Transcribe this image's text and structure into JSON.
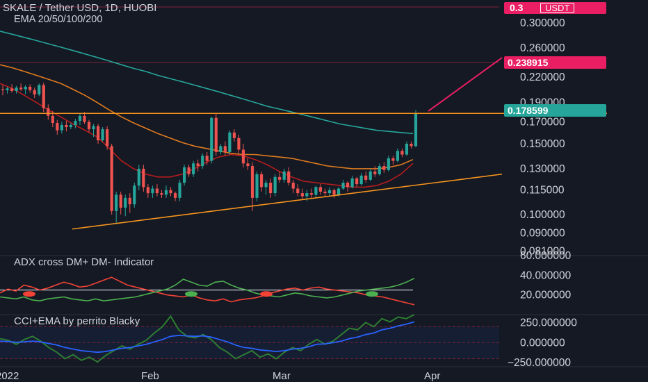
{
  "header": {
    "symbol_title": "SKALE / Tether USD, 1D, HUOBI",
    "ema_label": "EMA 20/50/100/200"
  },
  "price_badge": {
    "value": "0.3",
    "currency": "USDT"
  },
  "colors": {
    "background": "#151924",
    "bull": "#26a69a",
    "bear": "#ef5350",
    "trend_line": "#f7941d",
    "arrow": "#e91e63",
    "ema20": "#b71c1c",
    "ema50": "#e07b1f",
    "ema200": "#26a69a",
    "dm_plus": "#4caf50",
    "dm_minus": "#f44336",
    "cci": "#2e7d32",
    "cci_ema": "#2962ff"
  },
  "chart_data": [
    {
      "type": "candlestick",
      "title": "SKALE / Tether USD, 1D, HUOBI",
      "overlay": "EMA 20/50/100/200",
      "y_scale": "log",
      "ylim": [
        0.079,
        0.342
      ],
      "y_ticks": [
        "0.300000",
        "0.260000",
        "0.220000",
        "0.190000",
        "0.170000",
        "0.150000",
        "0.130000",
        "0.115000",
        "0.100000",
        "0.090000",
        "0.081000"
      ],
      "x_ticks": [
        "2022",
        "Feb",
        "Mar",
        "Apr"
      ],
      "price_labels": [
        {
          "value": "0.238915",
          "style": "target"
        },
        {
          "value": "0.178599",
          "style": "last"
        }
      ],
      "candles": [
        [
          0.205,
          0.21,
          0.198,
          0.204
        ],
        [
          0.204,
          0.208,
          0.2,
          0.206
        ],
        [
          0.206,
          0.211,
          0.201,
          0.203
        ],
        [
          0.203,
          0.209,
          0.2,
          0.207
        ],
        [
          0.207,
          0.212,
          0.203,
          0.205
        ],
        [
          0.205,
          0.21,
          0.199,
          0.208
        ],
        [
          0.208,
          0.211,
          0.201,
          0.204
        ],
        [
          0.204,
          0.207,
          0.195,
          0.199
        ],
        [
          0.199,
          0.212,
          0.197,
          0.21
        ],
        [
          0.21,
          0.213,
          0.18,
          0.184
        ],
        [
          0.184,
          0.188,
          0.172,
          0.176
        ],
        [
          0.176,
          0.181,
          0.165,
          0.169
        ],
        [
          0.169,
          0.172,
          0.158,
          0.162
        ],
        [
          0.162,
          0.17,
          0.159,
          0.167
        ],
        [
          0.167,
          0.171,
          0.161,
          0.165
        ],
        [
          0.165,
          0.169,
          0.163,
          0.167
        ],
        [
          0.167,
          0.173,
          0.164,
          0.171
        ],
        [
          0.171,
          0.179,
          0.167,
          0.176
        ],
        [
          0.176,
          0.18,
          0.168,
          0.17
        ],
        [
          0.17,
          0.172,
          0.16,
          0.163
        ],
        [
          0.163,
          0.168,
          0.156,
          0.166
        ],
        [
          0.166,
          0.168,
          0.15,
          0.153
        ],
        [
          0.153,
          0.165,
          0.152,
          0.163
        ],
        [
          0.163,
          0.166,
          0.145,
          0.148
        ],
        [
          0.148,
          0.15,
          0.1,
          0.102
        ],
        [
          0.102,
          0.114,
          0.095,
          0.112
        ],
        [
          0.112,
          0.114,
          0.1,
          0.104
        ],
        [
          0.104,
          0.112,
          0.099,
          0.11
        ],
        [
          0.11,
          0.113,
          0.101,
          0.106
        ],
        [
          0.106,
          0.12,
          0.104,
          0.118
        ],
        [
          0.118,
          0.133,
          0.115,
          0.13
        ],
        [
          0.13,
          0.133,
          0.114,
          0.117
        ],
        [
          0.117,
          0.119,
          0.11,
          0.113
        ],
        [
          0.113,
          0.118,
          0.11,
          0.116
        ],
        [
          0.116,
          0.119,
          0.111,
          0.113
        ],
        [
          0.113,
          0.115,
          0.11,
          0.112
        ],
        [
          0.112,
          0.118,
          0.11,
          0.115
        ],
        [
          0.115,
          0.117,
          0.111,
          0.113
        ],
        [
          0.113,
          0.114,
          0.108,
          0.11
        ],
        [
          0.11,
          0.122,
          0.108,
          0.12
        ],
        [
          0.12,
          0.133,
          0.118,
          0.131
        ],
        [
          0.131,
          0.133,
          0.124,
          0.126
        ],
        [
          0.126,
          0.136,
          0.124,
          0.134
        ],
        [
          0.134,
          0.137,
          0.128,
          0.132
        ],
        [
          0.132,
          0.142,
          0.13,
          0.14
        ],
        [
          0.14,
          0.143,
          0.133,
          0.136
        ],
        [
          0.136,
          0.175,
          0.134,
          0.174
        ],
        [
          0.174,
          0.178,
          0.14,
          0.143
        ],
        [
          0.143,
          0.15,
          0.141,
          0.148
        ],
        [
          0.148,
          0.152,
          0.14,
          0.143
        ],
        [
          0.143,
          0.162,
          0.141,
          0.16
        ],
        [
          0.16,
          0.163,
          0.152,
          0.155
        ],
        [
          0.155,
          0.158,
          0.142,
          0.145
        ],
        [
          0.145,
          0.15,
          0.131,
          0.134
        ],
        [
          0.134,
          0.138,
          0.129,
          0.132
        ],
        [
          0.132,
          0.135,
          0.102,
          0.11
        ],
        [
          0.11,
          0.128,
          0.108,
          0.126
        ],
        [
          0.126,
          0.128,
          0.114,
          0.117
        ],
        [
          0.117,
          0.122,
          0.112,
          0.12
        ],
        [
          0.12,
          0.123,
          0.11,
          0.113
        ],
        [
          0.113,
          0.126,
          0.111,
          0.124
        ],
        [
          0.124,
          0.128,
          0.12,
          0.122
        ],
        [
          0.122,
          0.13,
          0.12,
          0.128
        ],
        [
          0.128,
          0.131,
          0.118,
          0.12
        ],
        [
          0.12,
          0.122,
          0.113,
          0.116
        ],
        [
          0.116,
          0.119,
          0.111,
          0.113
        ],
        [
          0.113,
          0.116,
          0.109,
          0.111
        ],
        [
          0.111,
          0.115,
          0.108,
          0.113
        ],
        [
          0.113,
          0.116,
          0.11,
          0.112
        ],
        [
          0.112,
          0.118,
          0.11,
          0.117
        ],
        [
          0.117,
          0.119,
          0.112,
          0.114
        ],
        [
          0.114,
          0.116,
          0.111,
          0.113
        ],
        [
          0.113,
          0.117,
          0.111,
          0.115
        ],
        [
          0.115,
          0.116,
          0.11,
          0.112
        ],
        [
          0.112,
          0.117,
          0.111,
          0.116
        ],
        [
          0.116,
          0.122,
          0.115,
          0.12
        ],
        [
          0.12,
          0.121,
          0.114,
          0.117
        ],
        [
          0.117,
          0.125,
          0.116,
          0.123
        ],
        [
          0.123,
          0.124,
          0.117,
          0.119
        ],
        [
          0.119,
          0.127,
          0.118,
          0.125
        ],
        [
          0.125,
          0.128,
          0.12,
          0.122
        ],
        [
          0.122,
          0.13,
          0.121,
          0.128
        ],
        [
          0.128,
          0.132,
          0.124,
          0.126
        ],
        [
          0.126,
          0.134,
          0.125,
          0.132
        ],
        [
          0.132,
          0.135,
          0.127,
          0.129
        ],
        [
          0.129,
          0.14,
          0.128,
          0.138
        ],
        [
          0.138,
          0.14,
          0.133,
          0.136
        ],
        [
          0.136,
          0.146,
          0.135,
          0.144
        ],
        [
          0.144,
          0.146,
          0.139,
          0.141
        ],
        [
          0.141,
          0.152,
          0.14,
          0.15
        ],
        [
          0.15,
          0.152,
          0.146,
          0.148
        ],
        [
          0.148,
          0.182,
          0.147,
          0.178599
        ]
      ],
      "ema200": [
        0.286,
        0.281,
        0.276,
        0.271,
        0.266,
        0.261,
        0.256,
        0.251,
        0.246,
        0.241,
        0.236,
        0.231,
        0.227,
        0.222,
        0.218,
        0.214,
        0.21,
        0.206,
        0.202,
        0.198,
        0.194,
        0.19,
        0.186,
        0.183,
        0.18,
        0.177,
        0.174,
        0.171,
        0.168,
        0.166,
        0.164,
        0.162,
        0.161,
        0.16,
        0.159
      ],
      "ema50": [
        0.236,
        0.232,
        0.227,
        0.222,
        0.217,
        0.212,
        0.205,
        0.198,
        0.19,
        0.182,
        0.175,
        0.169,
        0.164,
        0.159,
        0.155,
        0.151,
        0.148,
        0.146,
        0.144,
        0.142,
        0.141,
        0.141,
        0.14,
        0.139,
        0.138,
        0.136,
        0.134,
        0.132,
        0.131,
        0.13,
        0.13,
        0.13,
        0.131,
        0.133,
        0.137
      ],
      "ema20": [
        0.212,
        0.206,
        0.198,
        0.19,
        0.182,
        0.175,
        0.168,
        0.162,
        0.156,
        0.146,
        0.136,
        0.13,
        0.126,
        0.124,
        0.124,
        0.126,
        0.13,
        0.135,
        0.139,
        0.141,
        0.14,
        0.137,
        0.133,
        0.128,
        0.124,
        0.121,
        0.12,
        0.119,
        0.118,
        0.117,
        0.117,
        0.118,
        0.121,
        0.126,
        0.134
      ],
      "annotations": [
        {
          "kind": "horizontal-line",
          "y": 0.1785
        },
        {
          "kind": "trendline",
          "from": [
            0,
            0.092
          ],
          "to": [
            1,
            0.126
          ]
        },
        {
          "kind": "arrow",
          "from": [
            0.178,
            0.178
          ],
          "to": [
            0.238915,
            0.238915
          ]
        }
      ]
    },
    {
      "type": "line",
      "title": "ADX cross DM+ DM- Indicator",
      "ylim": [
        0,
        60
      ],
      "y_ticks": [
        "60.000000",
        "40.000000",
        "20.000000"
      ],
      "threshold": 25,
      "series": [
        {
          "key": "dm_minus",
          "values": [
            22,
            26,
            24,
            30,
            28,
            25,
            27,
            30,
            33,
            31,
            28,
            29,
            32,
            35,
            38,
            34,
            30,
            28,
            26,
            24,
            22,
            20,
            19,
            18,
            20,
            17,
            15,
            14,
            16,
            13,
            15,
            16,
            17,
            19,
            22,
            24,
            26,
            27,
            25,
            27,
            28,
            26,
            25,
            24,
            23,
            22,
            20,
            19,
            18,
            16,
            14,
            12,
            10
          ]
        },
        {
          "key": "dm_plus",
          "values": [
            18,
            17,
            16,
            18,
            15,
            14,
            16,
            17,
            18,
            16,
            15,
            14,
            16,
            14,
            15,
            16,
            17,
            18,
            20,
            22,
            24,
            26,
            30,
            36,
            33,
            30,
            29,
            33,
            34,
            30,
            27,
            25,
            22,
            20,
            19,
            18,
            20,
            22,
            21,
            19,
            18,
            17,
            18,
            20,
            22,
            24,
            25,
            26,
            27,
            28,
            30,
            33,
            37
          ]
        }
      ]
    },
    {
      "type": "line",
      "title": "CCI+EMA by perrito Blacky",
      "ylim": [
        -300,
        350
      ],
      "y_ticks": [
        "250.000000",
        "0.000000",
        "−250.000000"
      ],
      "band": [
        -200,
        200
      ],
      "series": [
        {
          "key": "cci",
          "values": [
            50,
            30,
            -20,
            40,
            80,
            20,
            -60,
            -120,
            -200,
            -150,
            -220,
            -180,
            -240,
            -160,
            -100,
            -40,
            -80,
            -20,
            30,
            120,
            200,
            330,
            160,
            80,
            60,
            100,
            40,
            -60,
            -120,
            -200,
            -150,
            -100,
            -180,
            -140,
            -200,
            -120,
            -60,
            -100,
            -20,
            40,
            -20,
            20,
            100,
            180,
            160,
            250,
            200,
            300,
            260,
            320,
            300,
            350
          ]
        },
        {
          "key": "cci_ema",
          "values": [
            20,
            15,
            5,
            10,
            20,
            10,
            -10,
            -30,
            -60,
            -80,
            -100,
            -110,
            -120,
            -110,
            -90,
            -70,
            -60,
            -40,
            -20,
            10,
            40,
            80,
            90,
            85,
            80,
            85,
            70,
            40,
            10,
            -30,
            -60,
            -70,
            -90,
            -100,
            -110,
            -100,
            -80,
            -70,
            -50,
            -20,
            -15,
            0,
            20,
            50,
            70,
            100,
            120,
            160,
            180,
            210,
            230,
            260
          ]
        }
      ]
    }
  ]
}
